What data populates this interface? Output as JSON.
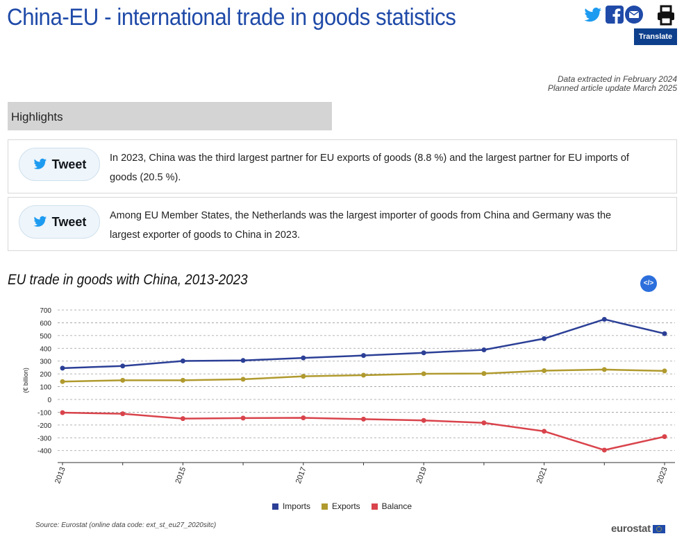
{
  "page": {
    "title": "China-EU - international trade in goods statistics",
    "translate_label": "Translate",
    "data_extracted": "Data extracted in February 2024",
    "planned_update": "Planned article update March 2025"
  },
  "share_icons": [
    "twitter-icon",
    "facebook-icon",
    "email-icon",
    "print-icon"
  ],
  "highlights": {
    "heading": "Highlights",
    "tweet_label": "Tweet",
    "items": [
      "In 2023, China was the third largest partner for EU exports of goods (8.8 %) and the largest partner for EU imports of goods (20.5 %).",
      "Among EU Member States, the Netherlands was the largest importer of goods from China and Germany was the largest exporter of goods to China in 2023."
    ]
  },
  "chart_data": {
    "type": "line",
    "title": "EU trade in goods with China, 2013-2023",
    "ylabel": "(€ billion)",
    "xlabel": "",
    "x": [
      2013,
      2014,
      2015,
      2016,
      2017,
      2018,
      2019,
      2020,
      2021,
      2022,
      2023
    ],
    "xtick_labels": [
      "2013",
      "2015",
      "2017",
      "2019",
      "2021",
      "2023"
    ],
    "ylim": [
      -450,
      700
    ],
    "yticks": [
      700,
      600,
      500,
      400,
      300,
      200,
      100,
      0,
      -100,
      -200,
      -300,
      -400
    ],
    "grid": true,
    "legend_position": "bottom-center",
    "series": [
      {
        "name": "Imports",
        "color": "#2b3f96",
        "values": [
          245,
          262,
          301,
          305,
          325,
          344,
          365,
          388,
          476,
          627,
          515
        ]
      },
      {
        "name": "Exports",
        "color": "#b09a2e",
        "values": [
          140,
          150,
          150,
          158,
          181,
          190,
          201,
          203,
          225,
          234,
          223
        ]
      },
      {
        "name": "Balance",
        "color": "#d9434b",
        "values": [
          -103,
          -112,
          -150,
          -146,
          -144,
          -154,
          -164,
          -183,
          -249,
          -396,
          -291
        ]
      }
    ]
  },
  "chart_footer": {
    "embed_label": "</>",
    "source": "Source: Eurostat (online data code: ext_st_eu27_2020sitc)",
    "logo": "eurostat"
  },
  "colors": {
    "title_blue": "#1f4aa8",
    "translate_bg": "#0e3f8c",
    "highlight_bar": "#d4d4d4"
  }
}
